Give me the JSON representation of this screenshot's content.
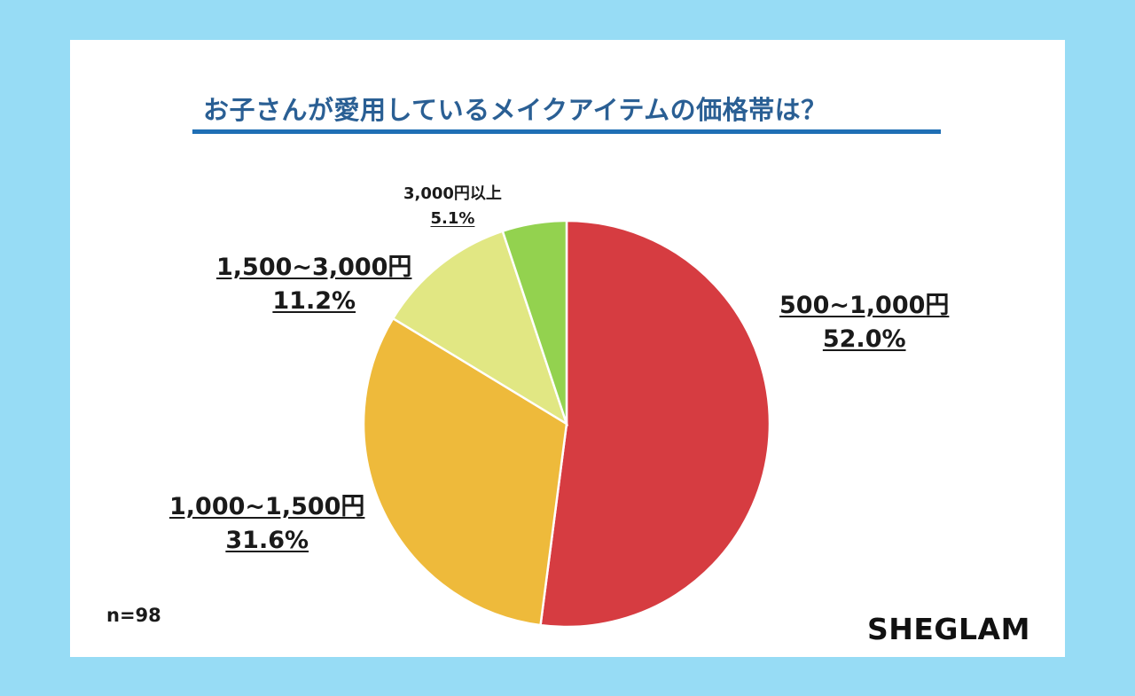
{
  "chart_data": {
    "type": "pie",
    "title": "お子さんが愛用しているメイクアイテムの価格帯は？",
    "categories": [
      "500~1,000円",
      "1,000~1,500円",
      "1,500~3,000円",
      "3,000円以上"
    ],
    "values": [
      52.0,
      31.6,
      11.2,
      5.1
    ],
    "labels": [
      "52.0%",
      "31.6%",
      "11.2%",
      "5.1%"
    ],
    "colors": [
      "#d63c41",
      "#eeba3b",
      "#e1e783",
      "#93d24f"
    ],
    "start_angle": "12 o'clock, clockwise",
    "sample_size": "n=98",
    "legend": "none (direct labels)"
  },
  "title": "お子さんが愛用しているメイクアイテムの価格帯は？",
  "sample": "n=98",
  "brand": "SHEGLAM",
  "colors": {
    "background": "#97dcf5",
    "title": "#2a5f94",
    "title_rule": "#1f6fb5"
  }
}
